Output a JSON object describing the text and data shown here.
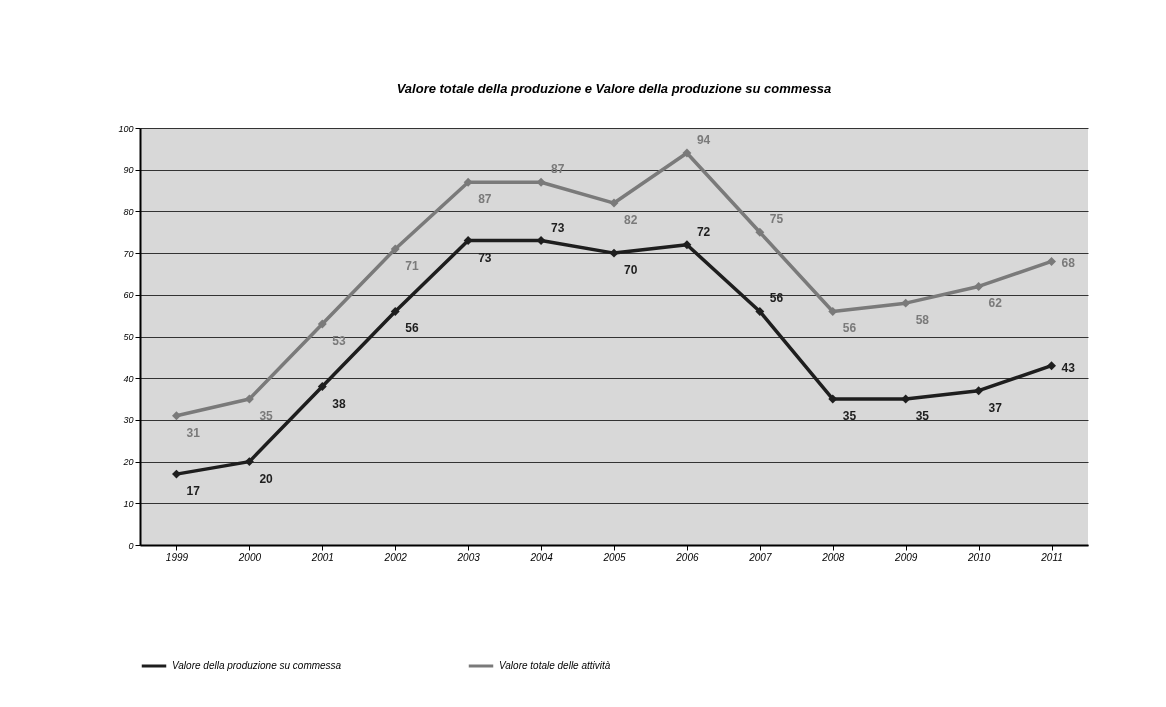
{
  "chart_data": {
    "type": "line",
    "title": "Valore totale della produzione e Valore della produzione su commessa",
    "categories": [
      "1999",
      "2000",
      "2001",
      "2002",
      "2003",
      "2004",
      "2005",
      "2006",
      "2007",
      "2008",
      "2009",
      "2010",
      "2011"
    ],
    "series": [
      {
        "name": "Valore della produzione su commessa",
        "color": "#1e1e1e",
        "values": [
          17,
          20,
          38,
          56,
          73,
          73,
          70,
          72,
          56,
          35,
          35,
          37,
          43
        ]
      },
      {
        "name": "Valore totale delle attività",
        "color": "#7a7a7a",
        "values": [
          31,
          35,
          53,
          71,
          87,
          87,
          82,
          94,
          75,
          56,
          58,
          62,
          68
        ]
      }
    ],
    "ylim": [
      0,
      100
    ],
    "yticks": [
      0,
      10,
      20,
      30,
      40,
      50,
      60,
      70,
      80,
      90,
      100
    ],
    "grid": "y",
    "legend": "bottom",
    "marker": "diamond",
    "data_labels": true
  }
}
